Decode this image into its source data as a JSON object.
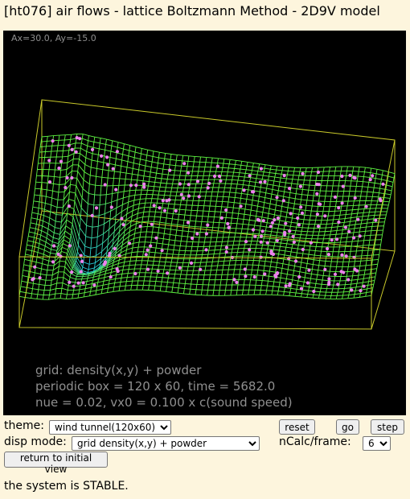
{
  "title": "[ht076] air flows - lattice Boltzmann Method - 2D9V model",
  "viewport": {
    "angle_readout": "Ax=30.0, Ay=-15.0",
    "info_lines": [
      "grid: density(x,y) + powder",
      "periodic box = 120 x 60,  time = 5682.0",
      "nue = 0.02,  vx0 = 0.100 x c(sound speed)"
    ],
    "colors": {
      "background": "#000000",
      "box": "#c9c92a",
      "grid_high": "#5ff542",
      "grid_mid": "#d8e838",
      "grid_low": "#1fc2e6",
      "powder": "#ee82ee"
    }
  },
  "controls": {
    "theme_label": "theme:",
    "theme_value": "wind tunnel(120x60)",
    "disp_label": "disp mode:",
    "disp_value": "grid density(x,y) + powder",
    "reset_label": "reset",
    "go_label": "go",
    "step_label": "step",
    "ncalc_label": "nCalc/frame:",
    "ncalc_value": "6",
    "return_label": "return to initial view"
  },
  "status": "the system is STABLE."
}
